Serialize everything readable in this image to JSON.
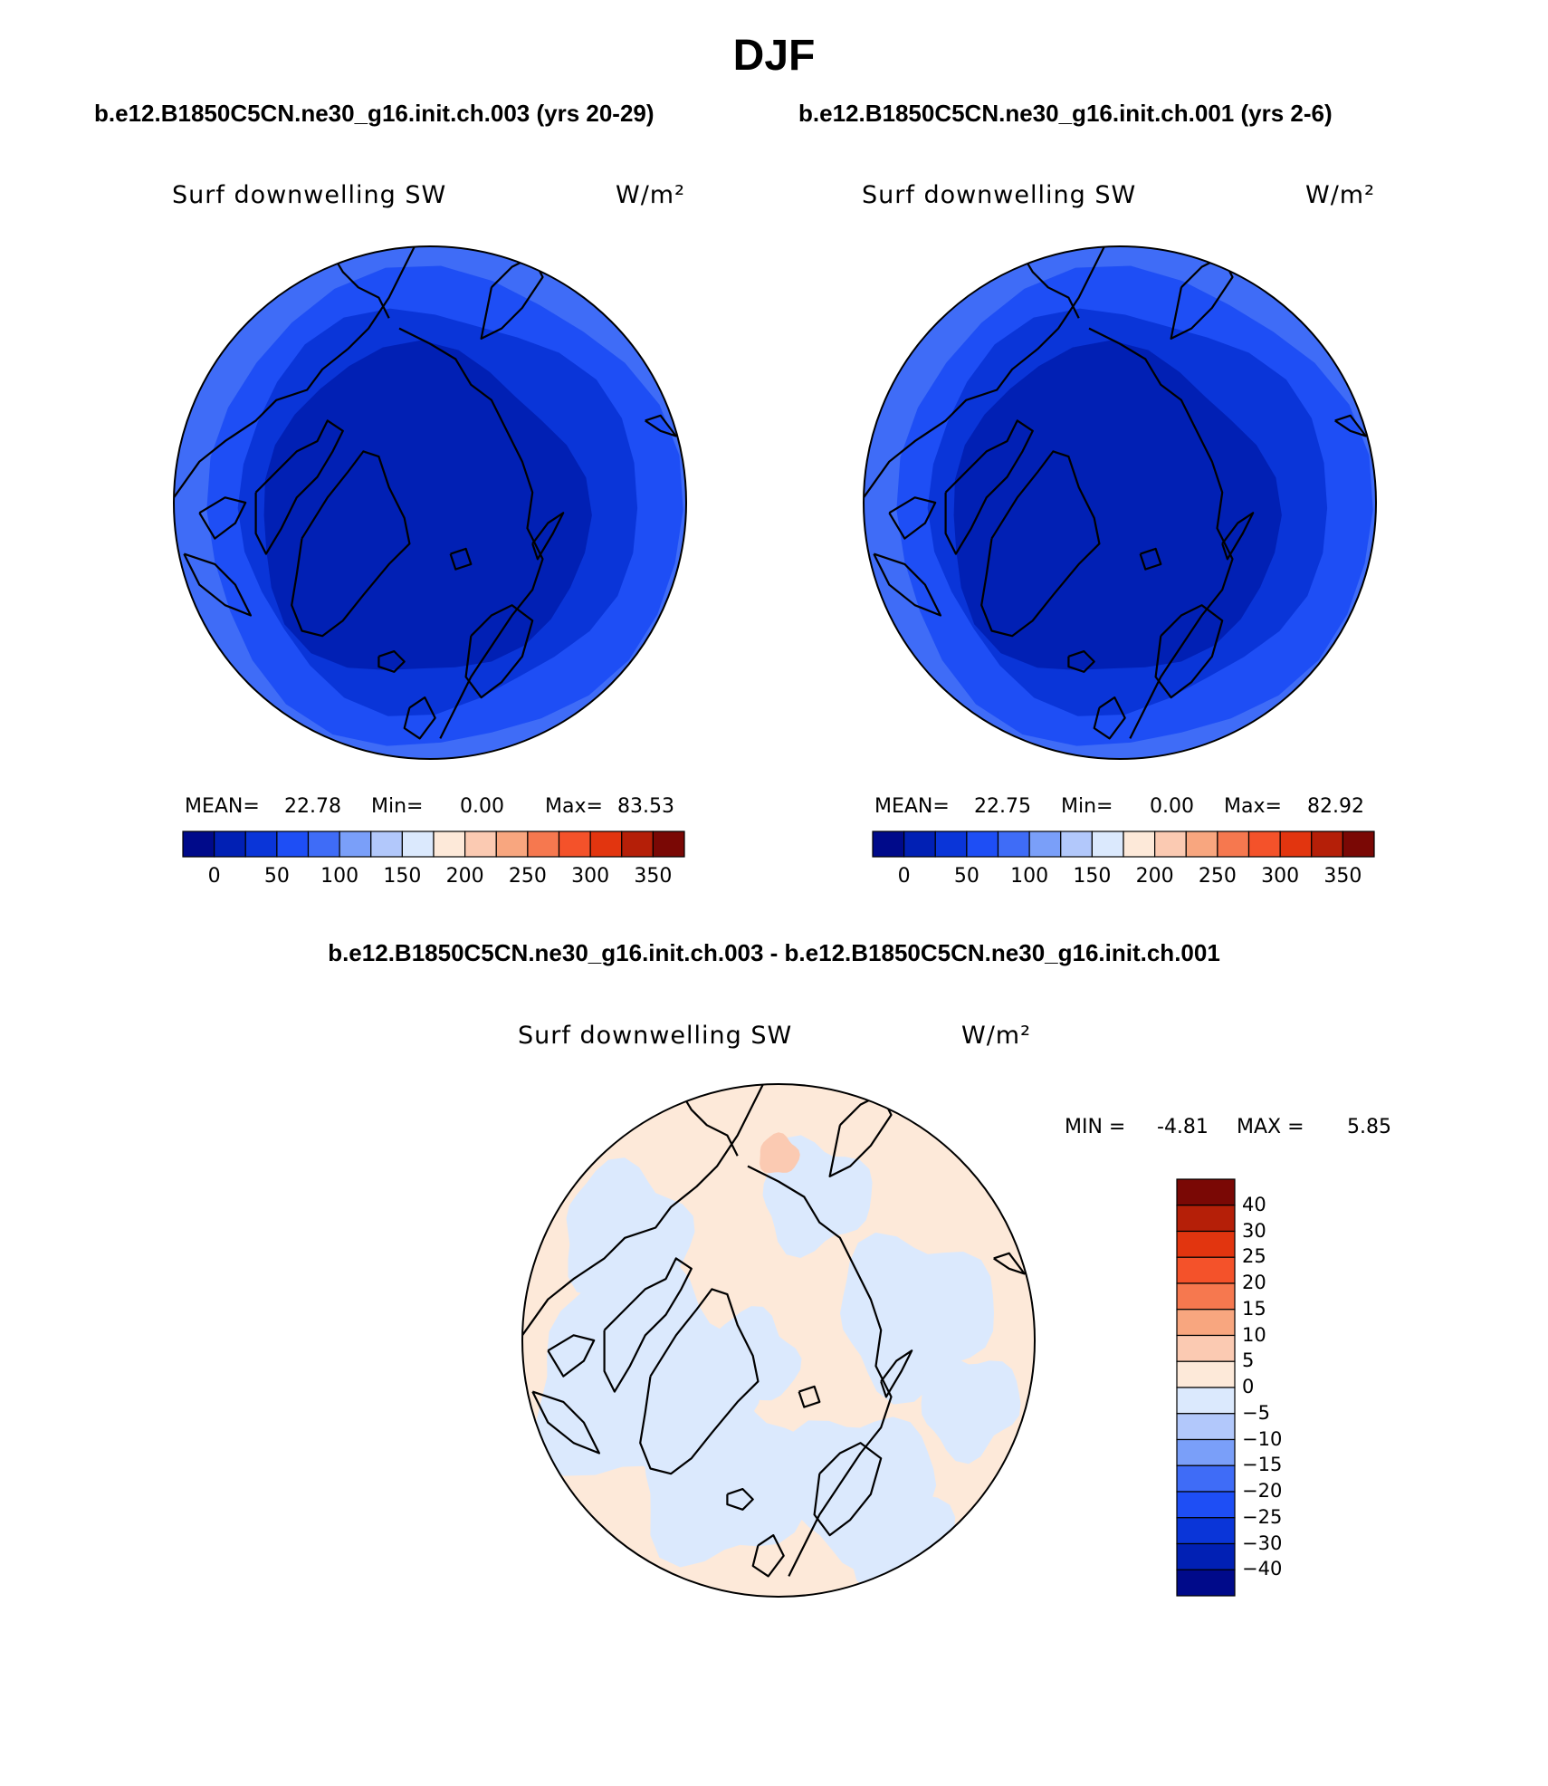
{
  "page": {
    "title": "DJF",
    "case_left": "b.e12.B1850C5CN.ne30_g16.init.ch.003 (yrs 20-29)",
    "case_right": "b.e12.B1850C5CN.ne30_g16.init.ch.001 (yrs 2-6)",
    "diff_title": "b.e12.B1850C5CN.ne30_g16.init.ch.003 - b.e12.B1850C5CN.ne30_g16.init.ch.001"
  },
  "chart_data": [
    {
      "type": "heatmap",
      "projection": "north polar stereographic",
      "title": "Surf downwelling SW",
      "units": "W/m²",
      "stats": {
        "mean_label": "MEAN=",
        "mean": "22.78",
        "min_label": "Min=",
        "min": "0.00",
        "max_label": "Max=",
        "max": "83.53"
      },
      "colorbar": {
        "orientation": "horizontal",
        "tick_labels": [
          "0",
          "50",
          "100",
          "150",
          "200",
          "250",
          "300",
          "350"
        ],
        "colors": [
          "#000a8a",
          "#0120b4",
          "#0a35d8",
          "#1e4ef5",
          "#3f6cf7",
          "#7a9ff9",
          "#b2c8fb",
          "#dbe9fd",
          "#fde9d9",
          "#fbcab2",
          "#f8a67f",
          "#f6784f",
          "#f4522a",
          "#e2350f",
          "#b51f08",
          "#7a0805"
        ]
      },
      "field_colors": {
        "pole": "#0120b4",
        "mid": "#0a35d8",
        "outer": "#1e4ef5",
        "edge": "#3f6cf7"
      }
    },
    {
      "type": "heatmap",
      "projection": "north polar stereographic",
      "title": "Surf downwelling SW",
      "units": "W/m²",
      "stats": {
        "mean_label": "MEAN=",
        "mean": "22.75",
        "min_label": "Min=",
        "min": "0.00",
        "max_label": "Max=",
        "max": "82.92"
      },
      "colorbar": {
        "orientation": "horizontal",
        "tick_labels": [
          "0",
          "50",
          "100",
          "150",
          "200",
          "250",
          "300",
          "350"
        ],
        "colors": [
          "#000a8a",
          "#0120b4",
          "#0a35d8",
          "#1e4ef5",
          "#3f6cf7",
          "#7a9ff9",
          "#b2c8fb",
          "#dbe9fd",
          "#fde9d9",
          "#fbcab2",
          "#f8a67f",
          "#f6784f",
          "#f4522a",
          "#e2350f",
          "#b51f08",
          "#7a0805"
        ]
      },
      "field_colors": {
        "pole": "#0120b4",
        "mid": "#0a35d8",
        "outer": "#1e4ef5",
        "edge": "#3f6cf7"
      }
    },
    {
      "type": "heatmap",
      "projection": "north polar stereographic",
      "title": "Surf downwelling SW",
      "units": "W/m²",
      "stats": {
        "min_label": "MIN =",
        "min": "-4.81",
        "max_label": "MAX =",
        "max": "5.85"
      },
      "colorbar": {
        "orientation": "vertical",
        "tick_labels": [
          "40",
          "30",
          "25",
          "20",
          "15",
          "10",
          "5",
          "0",
          "−5",
          "−10",
          "−15",
          "−20",
          "−25",
          "−30",
          "−40"
        ],
        "colors": [
          "#7a0805",
          "#b51f08",
          "#e2350f",
          "#f4522a",
          "#f6784f",
          "#f8a67f",
          "#fbcab2",
          "#fde9d9",
          "#dbe9fd",
          "#b2c8fb",
          "#7a9ff9",
          "#3f6cf7",
          "#1e4ef5",
          "#0a35d8",
          "#0120b4",
          "#000a8a"
        ]
      },
      "field_colors": {
        "positive": "#fde9d9",
        "negative": "#dbe9fd",
        "strong_positive": "#fbcab2"
      }
    }
  ]
}
